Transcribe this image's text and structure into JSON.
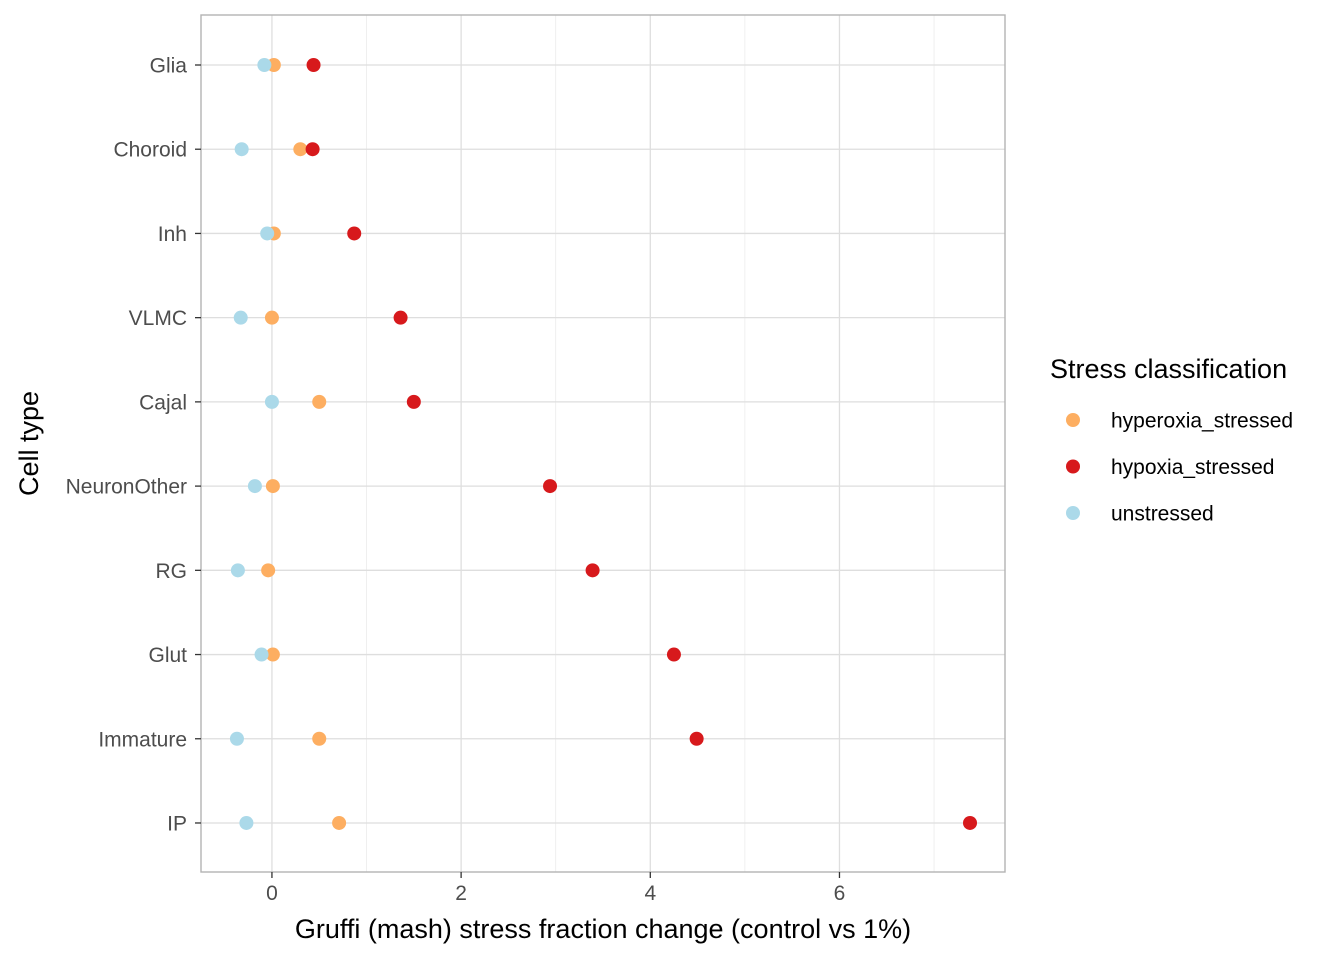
{
  "chart_data": {
    "type": "scatter",
    "xlabel": "Gruffi (mash) stress fraction change (control vs 1%)",
    "ylabel": "Cell type",
    "xlim": [
      -0.75,
      7.75
    ],
    "x_ticks": [
      0,
      2,
      4,
      6
    ],
    "x_tick_labels": [
      "0",
      "2",
      "4",
      "6"
    ],
    "categories": [
      "Glia",
      "Choroid",
      "Inh",
      "VLMC",
      "Cajal",
      "NeuronOther",
      "RG",
      "Glut",
      "Immature",
      "IP"
    ],
    "grid": true,
    "legend": {
      "title": "Stress classification",
      "placement": "right"
    },
    "series": [
      {
        "name": "hyperoxia_stressed",
        "color": "#FDAE61",
        "values": [
          0.02,
          0.3,
          0.02,
          0.0,
          0.5,
          0.01,
          -0.04,
          0.01,
          0.5,
          0.71
        ]
      },
      {
        "name": "hypoxia_stressed",
        "color": "#D7191C",
        "values": [
          0.44,
          0.43,
          0.87,
          1.36,
          1.5,
          2.94,
          3.39,
          4.25,
          4.49,
          7.38
        ]
      },
      {
        "name": "unstressed",
        "color": "#ABD9E9",
        "values": [
          -0.08,
          -0.32,
          -0.05,
          -0.33,
          0.0,
          -0.18,
          -0.36,
          -0.11,
          -0.37,
          -0.27
        ]
      }
    ]
  }
}
